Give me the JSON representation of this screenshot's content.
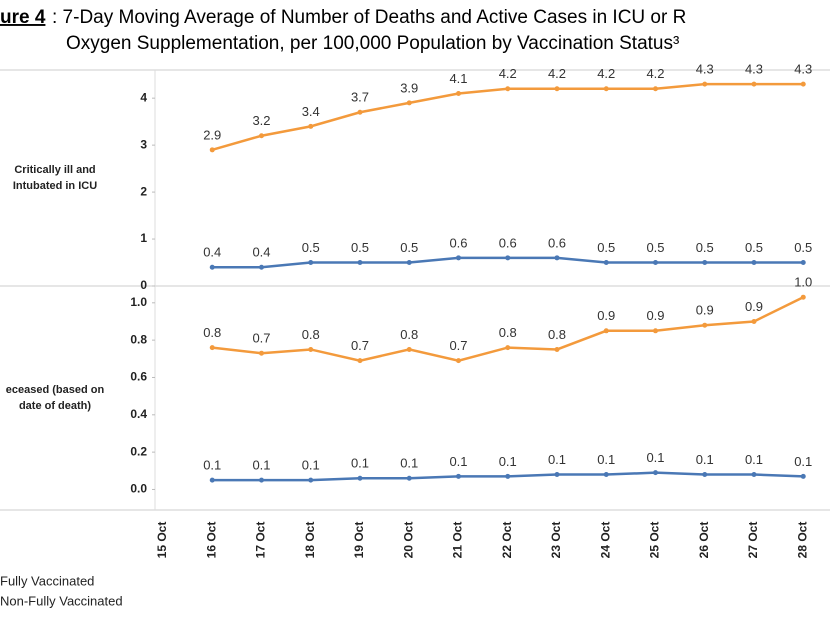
{
  "chart_data": {
    "type": "line",
    "title": {
      "label": "ure 4",
      "rest": ": 7-Day Moving Average of Number of Deaths and Active Cases in ICU or R",
      "line2": "Oxygen Supplementation, per 100,000 Population by Vaccination Status³"
    },
    "categories": [
      "15 Oct",
      "16 Oct",
      "17 Oct",
      "18 Oct",
      "19 Oct",
      "20 Oct",
      "21 Oct",
      "22 Oct",
      "23 Oct",
      "24 Oct",
      "25 Oct",
      "26 Oct",
      "27 Oct",
      "28 Oct"
    ],
    "series": [
      {
        "name": "Fully Vaccinated",
        "color": "#4a78b5"
      },
      {
        "name": "Non-Fully Vaccinated",
        "color": "#f39a3c"
      }
    ],
    "panels": [
      {
        "y_label": [
          "Critically ill and",
          "Intubated in ICU"
        ],
        "ylim": [
          0,
          4.6
        ],
        "yticks": [
          0,
          1,
          2,
          3,
          4
        ],
        "values": [
          [
            null,
            0.4,
            0.4,
            0.5,
            0.5,
            0.5,
            0.6,
            0.6,
            0.6,
            0.5,
            0.5,
            0.5,
            0.5,
            0.5
          ],
          [
            null,
            2.9,
            3.2,
            3.4,
            3.7,
            3.9,
            4.1,
            4.2,
            4.2,
            4.2,
            4.2,
            4.3,
            4.3,
            4.3
          ]
        ]
      },
      {
        "y_label": [
          "eceased (based on",
          "date of death)"
        ],
        "ylim": [
          -0.11,
          1.09
        ],
        "yticks": [
          {
            "value": 0,
            "label": "0.0"
          },
          0.2,
          0.4,
          0.6,
          0.8,
          {
            "value": 1,
            "label": "1.0"
          }
        ],
        "values": [
          [
            null,
            0.05,
            0.05,
            0.05,
            0.06,
            0.06,
            0.07,
            0.07,
            0.08,
            0.08,
            0.09,
            0.08,
            0.08,
            0.07
          ],
          [
            null,
            0.76,
            0.73,
            0.75,
            0.69,
            0.75,
            0.69,
            0.76,
            0.75,
            0.85,
            0.85,
            0.88,
            0.9,
            1.03
          ]
        ],
        "value_labels": [
          [
            null,
            "0.1",
            "0.1",
            "0.1",
            "0.1",
            "0.1",
            "0.1",
            "0.1",
            "0.1",
            "0.1",
            "0.1",
            "0.1",
            "0.1",
            "0.1"
          ],
          [
            null,
            "0.8",
            "0.7",
            "0.8",
            "0.7",
            "0.8",
            "0.7",
            "0.8",
            "0.8",
            "0.9",
            "0.9",
            "0.9",
            "0.9",
            "1.0"
          ]
        ]
      }
    ]
  }
}
